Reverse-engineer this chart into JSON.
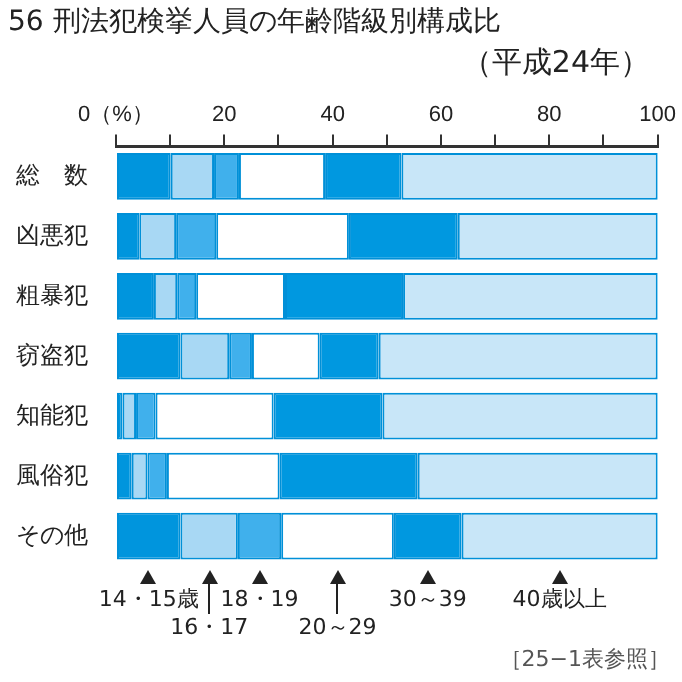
{
  "chart_data": {
    "type": "bar",
    "orientation": "horizontal",
    "stacked": true,
    "title": "56 刑法犯検挙人員の年齢階級別構成比",
    "subtitle": "（平成24年）",
    "categories": [
      "総　数",
      "凶悪犯",
      "粗暴犯",
      "窃盗犯",
      "知能犯",
      "風俗犯",
      "その他"
    ],
    "xlim": [
      0,
      100
    ],
    "xticks": [
      {
        "value": 0,
        "label": "0（%）"
      },
      {
        "value": 10,
        "label": null
      },
      20,
      {
        "value": 30,
        "label": null
      },
      40,
      {
        "value": 50,
        "label": null
      },
      60,
      {
        "value": 70,
        "label": null
      },
      80,
      {
        "value": 90,
        "label": null
      },
      100
    ],
    "grid": false,
    "legend": "bottom",
    "series": [
      {
        "name": "14・15歳",
        "color": "#0095dd",
        "values": [
          10.1,
          4.3,
          7.0,
          11.9,
          1.2,
          2.9,
          11.9
        ]
      },
      {
        "name": "16・17",
        "color": "#a8d8f4",
        "values": [
          8.0,
          6.8,
          4.3,
          9.0,
          2.5,
          2.9,
          10.6
        ]
      },
      {
        "name": "18・19",
        "color": "#40b0ec",
        "values": [
          4.6,
          7.4,
          3.5,
          4.2,
          3.6,
          3.6,
          8.0
        ]
      },
      {
        "name": "20～29",
        "color": "#ffffff",
        "values": [
          15.9,
          24.5,
          16.4,
          12.5,
          21.8,
          20.8,
          20.8
        ]
      },
      {
        "name": "30～39",
        "color": "#0098e0",
        "values": [
          14.1,
          20.1,
          21.8,
          10.9,
          20.1,
          25.5,
          12.5
        ]
      },
      {
        "name": "40歳以上",
        "color": "#c8e6f8",
        "values": [
          47.3,
          36.9,
          47.0,
          51.5,
          50.8,
          44.3,
          36.2
        ]
      }
    ],
    "annotations": [
      "［25−1表参照］"
    ]
  }
}
